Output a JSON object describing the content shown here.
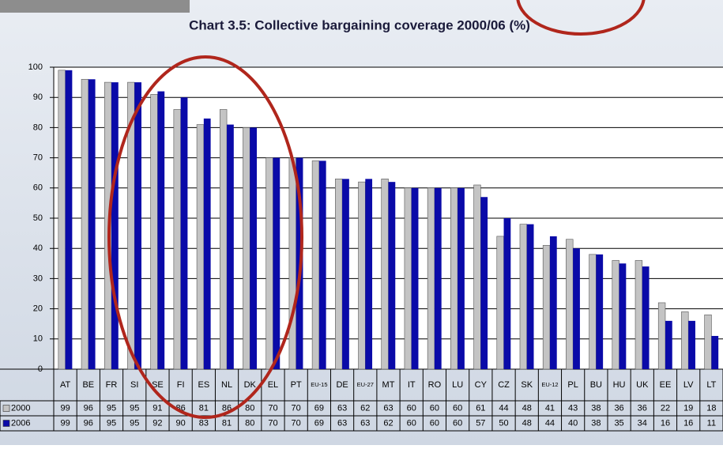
{
  "chart_data": {
    "type": "bar",
    "title": "Chart 3.5: Collective bargaining coverage 2000/06 (%)",
    "categories": [
      "AT",
      "BE",
      "FR",
      "SI",
      "SE",
      "FI",
      "ES",
      "NL",
      "DK",
      "EL",
      "PT",
      "EU-15",
      "DE",
      "EU-27",
      "MT",
      "IT",
      "RO",
      "LU",
      "CY",
      "CZ",
      "SK",
      "EU-12",
      "PL",
      "BU",
      "HU",
      "UK",
      "EE",
      "LV",
      "LT"
    ],
    "series": [
      {
        "name": "2000",
        "color": "#c4c4c4",
        "values": [
          99,
          96,
          95,
          95,
          91,
          86,
          81,
          86,
          80,
          70,
          70,
          69,
          63,
          62,
          63,
          60,
          60,
          60,
          61,
          44,
          48,
          41,
          43,
          38,
          36,
          36,
          22,
          19,
          18
        ]
      },
      {
        "name": "2006",
        "color": "#0a0aa8",
        "values": [
          99,
          96,
          95,
          95,
          92,
          90,
          83,
          81,
          80,
          70,
          70,
          69,
          63,
          63,
          62,
          60,
          60,
          60,
          57,
          50,
          48,
          44,
          40,
          38,
          35,
          34,
          16,
          16,
          11
        ]
      }
    ],
    "ylim": [
      0,
      100
    ],
    "yticks": [
      0,
      10,
      20,
      30,
      40,
      50,
      60,
      70,
      80,
      90,
      100
    ],
    "grid": true
  }
}
